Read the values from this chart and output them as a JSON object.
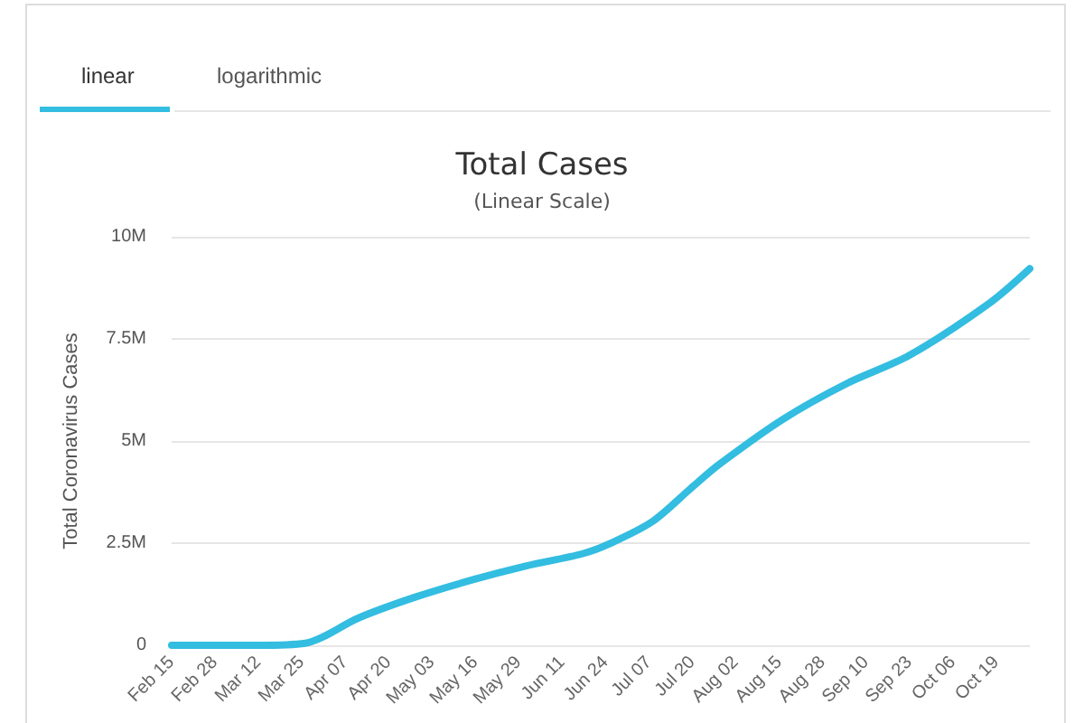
{
  "chart_data": {
    "type": "line",
    "title": "Total Cases",
    "subtitle": "(Linear Scale)",
    "ylabel": "Total Coronavirus Cases",
    "annotations": [
      "linear",
      "logarithmic"
    ],
    "x": [
      "--02-15",
      "--03-12",
      "--03-26",
      "--04-11",
      "--04-28",
      "--05-15",
      "--05-31",
      "--06-17",
      "--06-25",
      "--07-08",
      "--07-20",
      "--07-28",
      "--08-16",
      "--09-04",
      "--09-23",
      "--10-17",
      "--10-29"
    ],
    "series": [
      {
        "color": "#33bde0",
        "values": [
          0,
          0,
          50000,
          670000,
          1180000,
          1600000,
          1940000,
          2240000,
          2480000,
          3030000,
          3880000,
          4430000,
          5530000,
          6400000,
          7100000,
          8380000,
          9220000
        ]
      }
    ],
    "xlim": [
      "--02-15",
      "--10-29"
    ],
    "xticks": [
      {
        "value": "--02-15",
        "label": "Feb 15"
      },
      {
        "value": "--02-28",
        "label": "Feb 28"
      },
      {
        "value": "--03-12",
        "label": "Mar 12"
      },
      {
        "value": "--03-25",
        "label": "Mar 25"
      },
      {
        "value": "--04-07",
        "label": "Apr 07"
      },
      {
        "value": "--04-20",
        "label": "Apr 20"
      },
      {
        "value": "--05-03",
        "label": "May 03"
      },
      {
        "value": "--05-16",
        "label": "May 16"
      },
      {
        "value": "--05-29",
        "label": "May 29"
      },
      {
        "value": "--06-11",
        "label": "Jun 11"
      },
      {
        "value": "--06-24",
        "label": "Jun 24"
      },
      {
        "value": "--07-07",
        "label": "Jul 07"
      },
      {
        "value": "--07-20",
        "label": "Jul 20"
      },
      {
        "value": "--08-02",
        "label": "Aug 02"
      },
      {
        "value": "--08-15",
        "label": "Aug 15"
      },
      {
        "value": "--08-28",
        "label": "Aug 28"
      },
      {
        "value": "--09-10",
        "label": "Sep 10"
      },
      {
        "value": "--09-23",
        "label": "Sep 23"
      },
      {
        "value": "--10-06",
        "label": "Oct 06"
      },
      {
        "value": "--10-19",
        "label": "Oct 19"
      }
    ],
    "ylim": [
      0,
      10000000
    ],
    "yticks": [
      0,
      {
        "value": 2500000,
        "label": "2.5M"
      },
      {
        "value": 5000000,
        "label": "5M"
      },
      {
        "value": 7500000,
        "label": "7.5M"
      },
      {
        "value": 10000000,
        "label": "10M"
      }
    ],
    "grid": "y",
    "marker": "none",
    "line_style": "solid"
  }
}
